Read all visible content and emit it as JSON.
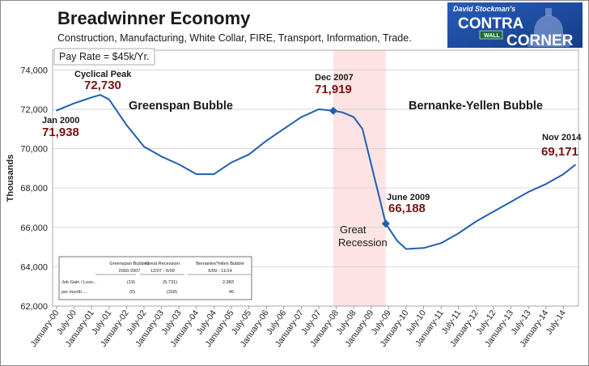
{
  "chart_data": {
    "type": "line",
    "title": "Breadwinner Economy",
    "subtitle": "Construction, Manufacturing, White Collar, FIRE, Transport, Information, Trade.",
    "note": "Pay Rate = $45k/Yr.",
    "xlabel": "",
    "ylabel": "Thousands",
    "ylim": [
      62000,
      75000
    ],
    "yticks": [
      "62,000",
      "64,000",
      "66,000",
      "68,000",
      "70,000",
      "72,000",
      "74,000"
    ],
    "xticks": [
      "January-00",
      "July-00",
      "January-01",
      "July-01",
      "January-02",
      "July-02",
      "January-03",
      "July-03",
      "January-04",
      "July-04",
      "January-05",
      "July-05",
      "January-06",
      "July-06",
      "January-07",
      "July-07",
      "January-08",
      "July-08",
      "January-09",
      "July-09",
      "January-10",
      "July-10",
      "January-11",
      "July-11",
      "January-12",
      "July-12",
      "January-13",
      "July-13",
      "January-14",
      "July-14"
    ],
    "series": [
      {
        "color": "#1f5fb4",
        "x": [
          "2000-01",
          "2000-07",
          "2001-01",
          "2001-04",
          "2001-07",
          "2002-01",
          "2002-07",
          "2003-01",
          "2003-07",
          "2004-01",
          "2004-07",
          "2005-01",
          "2005-07",
          "2006-01",
          "2006-07",
          "2007-01",
          "2007-07",
          "2007-12",
          "2008-03",
          "2008-07",
          "2008-10",
          "2009-01",
          "2009-04",
          "2009-06",
          "2009-10",
          "2010-01",
          "2010-07",
          "2011-01",
          "2011-07",
          "2012-01",
          "2012-07",
          "2013-01",
          "2013-07",
          "2014-01",
          "2014-07",
          "2014-11"
        ],
        "values": [
          71938,
          72300,
          72600,
          72730,
          72500,
          71200,
          70100,
          69600,
          69200,
          68700,
          68700,
          69300,
          69700,
          70400,
          71000,
          71600,
          72000,
          71919,
          71850,
          71600,
          71000,
          69200,
          67400,
          66188,
          65300,
          64900,
          64950,
          65200,
          65700,
          66300,
          66800,
          67300,
          67800,
          68200,
          68700,
          69171
        ]
      }
    ],
    "shaded_region": {
      "start": "2007-12",
      "end": "2009-06",
      "color": "#fde3e3"
    },
    "annotations": [
      {
        "label": "Jan 2000",
        "value": "71,938",
        "x": "2000-01",
        "y": 71938
      },
      {
        "label": "Cyclical Peak",
        "value": "72,730",
        "x": "2001-04",
        "y": 72730
      },
      {
        "label": "Dec 2007",
        "value": "71,919",
        "x": "2007-12",
        "y": 71919
      },
      {
        "label": "June 2009",
        "value": "66,188",
        "x": "2009-06",
        "y": 66188
      },
      {
        "label": "Nov 2014",
        "value": "69,171",
        "x": "2014-11",
        "y": 69171
      }
    ],
    "region_labels": [
      "Greenspan Bubble",
      "Bernanke-Yellen Bubble"
    ],
    "recession_label": [
      "Great",
      "Recession"
    ],
    "table": {
      "headers": [
        [
          "Greenspan Bubbles",
          "2000-2007"
        ],
        [
          "Great Recession",
          "12/07 - 6/09"
        ],
        [
          "Bernanke/Yellen Bubble",
          "6/09 - 11/14"
        ]
      ],
      "rows": [
        {
          "label": "Job Gain / Loss...",
          "values": [
            "(19)",
            "(5,731)",
            "2,983"
          ]
        },
        {
          "label": "per month.....",
          "values": [
            "(0)",
            "(318)",
            "46"
          ]
        }
      ]
    },
    "grid": true,
    "legend": "none"
  },
  "logo": {
    "line1": "David Stockman's",
    "line2": "CONTRA",
    "line3": "CORNER",
    "sign": "WALL"
  }
}
